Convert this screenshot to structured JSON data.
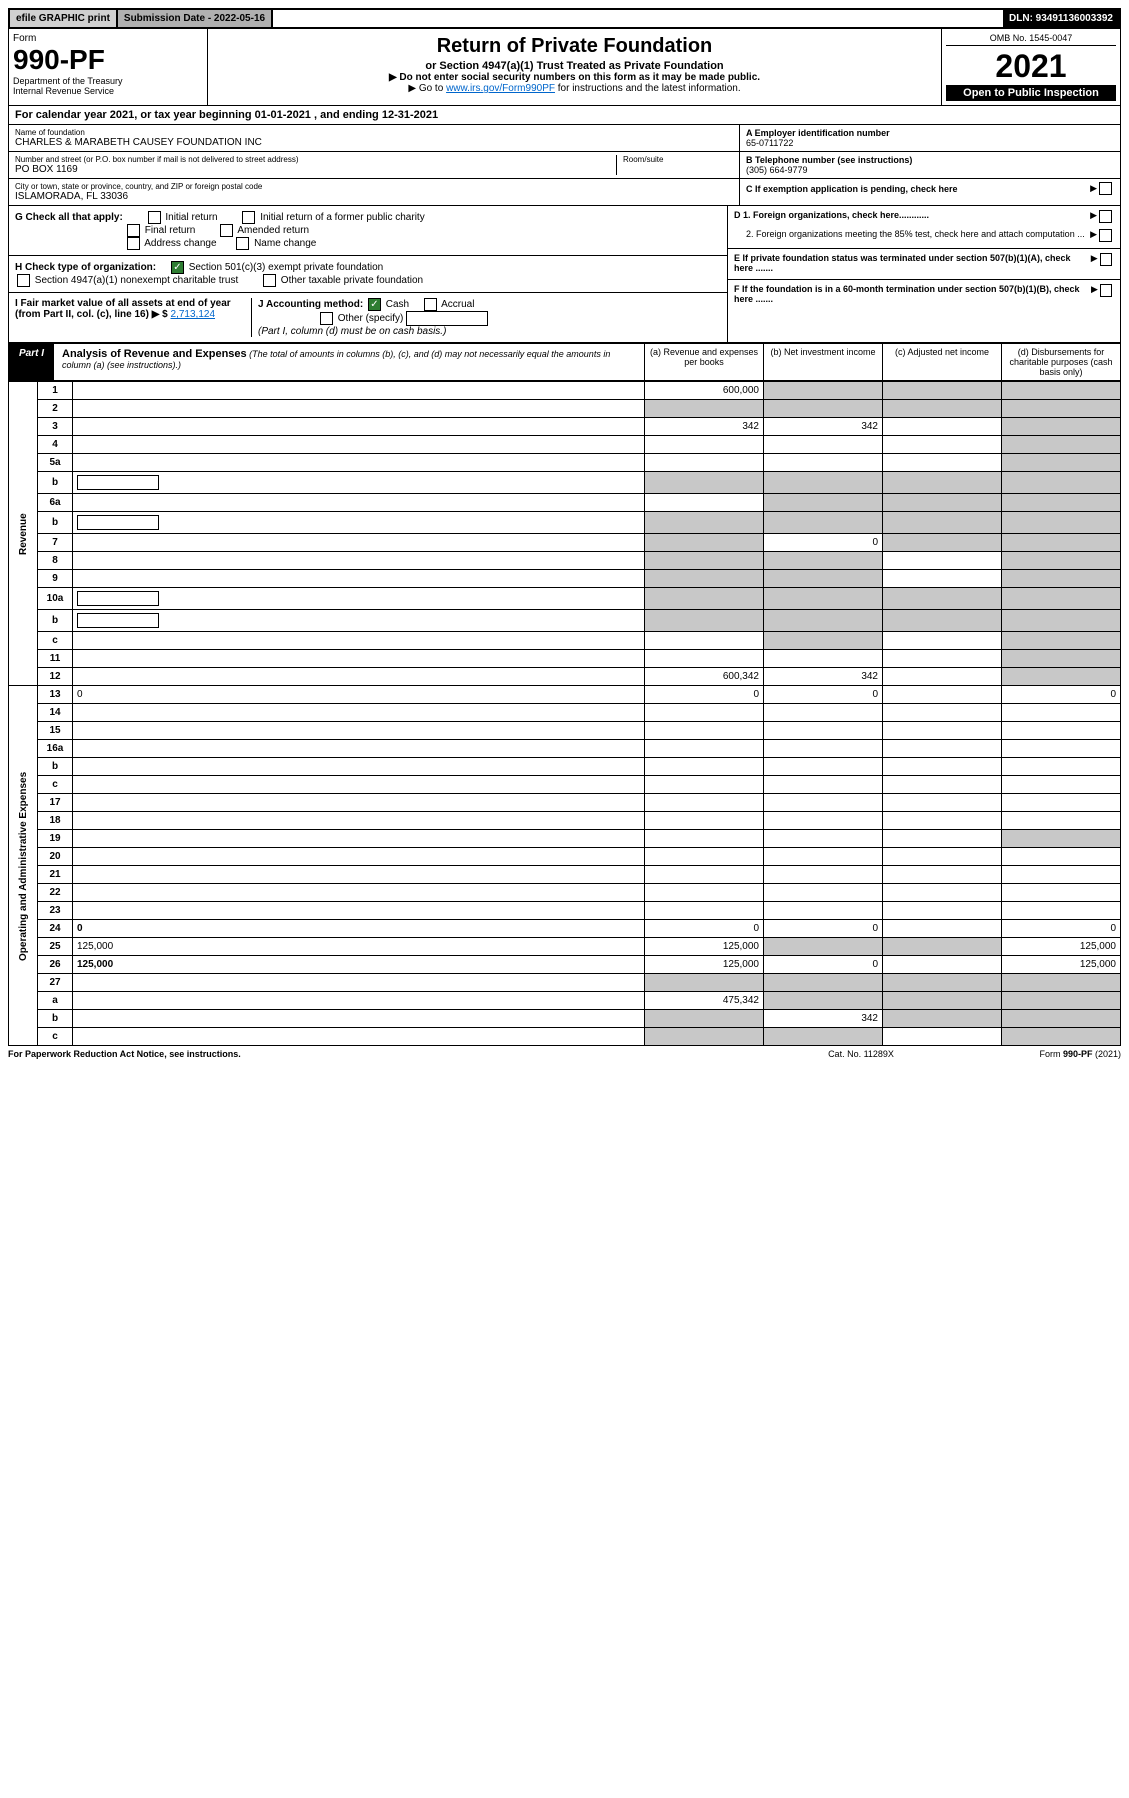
{
  "topbar": {
    "efile": "efile GRAPHIC print",
    "submission": "Submission Date - 2022-05-16",
    "dln": "DLN: 93491136003392"
  },
  "header": {
    "form_word": "Form",
    "form_no": "990-PF",
    "dept": "Department of the Treasury",
    "irs": "Internal Revenue Service",
    "title": "Return of Private Foundation",
    "subtitle": "or Section 4947(a)(1) Trust Treated as Private Foundation",
    "note1": "▶ Do not enter social security numbers on this form as it may be made public.",
    "note2_pre": "▶ Go to ",
    "note2_link": "www.irs.gov/Form990PF",
    "note2_post": " for instructions and the latest information.",
    "omb": "OMB No. 1545-0047",
    "year": "2021",
    "open": "Open to Public Inspection"
  },
  "calendar": {
    "text_pre": "For calendar year 2021, or tax year beginning ",
    "begin": "01-01-2021",
    "mid": " , and ending ",
    "end": "12-31-2021"
  },
  "entity": {
    "name_label": "Name of foundation",
    "name": "CHARLES & MARABETH CAUSEY FOUNDATION INC",
    "addr_label": "Number and street (or P.O. box number if mail is not delivered to street address)",
    "addr": "PO BOX 1169",
    "room_label": "Room/suite",
    "city_label": "City or town, state or province, country, and ZIP or foreign postal code",
    "city": "ISLAMORADA, FL  33036",
    "a_label": "A Employer identification number",
    "a_value": "65-0711722",
    "b_label": "B Telephone number (see instructions)",
    "b_value": "(305) 664-9779",
    "c_label": "C If exemption application is pending, check here"
  },
  "checks": {
    "g_label": "G Check all that apply:",
    "g_items": [
      "Initial return",
      "Initial return of a former public charity",
      "Final return",
      "Amended return",
      "Address change",
      "Name change"
    ],
    "h_label": "H Check type of organization:",
    "h1": "Section 501(c)(3) exempt private foundation",
    "h2": "Section 4947(a)(1) nonexempt charitable trust",
    "h3": "Other taxable private foundation",
    "i_label": "I Fair market value of all assets at end of year (from Part II, col. (c), line 16) ▶ $",
    "i_value": "2,713,124",
    "j_label": "J Accounting method:",
    "j_cash": "Cash",
    "j_accrual": "Accrual",
    "j_other": "Other (specify)",
    "j_note": "(Part I, column (d) must be on cash basis.)",
    "d1": "D 1. Foreign organizations, check here............",
    "d2": "2. Foreign organizations meeting the 85% test, check here and attach computation ...",
    "e": "E  If private foundation status was terminated under section 507(b)(1)(A), check here .......",
    "f": "F  If the foundation is in a 60-month termination under section 507(b)(1)(B), check here ......."
  },
  "part1": {
    "label": "Part I",
    "title": "Analysis of Revenue and Expenses",
    "note": " (The total of amounts in columns (b), (c), and (d) may not necessarily equal the amounts in column (a) (see instructions).)",
    "col_a": "(a) Revenue and expenses per books",
    "col_b": "(b) Net investment income",
    "col_c": "(c) Adjusted net income",
    "col_d": "(d) Disbursements for charitable purposes (cash basis only)"
  },
  "side": {
    "revenue": "Revenue",
    "expenses": "Operating and Administrative Expenses"
  },
  "rows": [
    {
      "n": "1",
      "d": "",
      "a": "600,000",
      "b": "",
      "c": "",
      "shade_b": true,
      "shade_c": true,
      "shade_d": true
    },
    {
      "n": "2",
      "d": "",
      "a": "",
      "b": "",
      "c": "",
      "shade_a": true,
      "shade_b": true,
      "shade_c": true,
      "shade_d": true,
      "bold_parts": true
    },
    {
      "n": "3",
      "d": "",
      "a": "342",
      "b": "342",
      "c": "",
      "shade_d": true
    },
    {
      "n": "4",
      "d": "",
      "a": "",
      "b": "",
      "c": "",
      "shade_d": true
    },
    {
      "n": "5a",
      "d": "",
      "a": "",
      "b": "",
      "c": "",
      "shade_d": true
    },
    {
      "n": "b",
      "d": "",
      "a": "",
      "b": "",
      "c": "",
      "shade_a": true,
      "shade_b": true,
      "shade_c": true,
      "shade_d": true,
      "has_box": true
    },
    {
      "n": "6a",
      "d": "",
      "a": "",
      "b": "",
      "c": "",
      "shade_b": true,
      "shade_c": true,
      "shade_d": true
    },
    {
      "n": "b",
      "d": "",
      "a": "",
      "b": "",
      "c": "",
      "shade_a": true,
      "shade_b": true,
      "shade_c": true,
      "shade_d": true,
      "has_box": true
    },
    {
      "n": "7",
      "d": "",
      "a": "",
      "b": "0",
      "c": "",
      "shade_a": true,
      "shade_c": true,
      "shade_d": true
    },
    {
      "n": "8",
      "d": "",
      "a": "",
      "b": "",
      "c": "",
      "shade_a": true,
      "shade_b": true,
      "shade_d": true
    },
    {
      "n": "9",
      "d": "",
      "a": "",
      "b": "",
      "c": "",
      "shade_a": true,
      "shade_b": true,
      "shade_d": true
    },
    {
      "n": "10a",
      "d": "",
      "a": "",
      "b": "",
      "c": "",
      "shade_a": true,
      "shade_b": true,
      "shade_c": true,
      "shade_d": true,
      "has_box": true
    },
    {
      "n": "b",
      "d": "",
      "a": "",
      "b": "",
      "c": "",
      "shade_a": true,
      "shade_b": true,
      "shade_c": true,
      "shade_d": true,
      "has_box": true
    },
    {
      "n": "c",
      "d": "",
      "a": "",
      "b": "",
      "c": "",
      "shade_b": true,
      "shade_d": true
    },
    {
      "n": "11",
      "d": "",
      "a": "",
      "b": "",
      "c": "",
      "shade_d": true
    },
    {
      "n": "12",
      "d": "",
      "a": "600,342",
      "b": "342",
      "c": "",
      "bold": true,
      "shade_d": true
    },
    {
      "n": "13",
      "d": "0",
      "a": "0",
      "b": "0",
      "c": ""
    },
    {
      "n": "14",
      "d": "",
      "a": "",
      "b": "",
      "c": ""
    },
    {
      "n": "15",
      "d": "",
      "a": "",
      "b": "",
      "c": ""
    },
    {
      "n": "16a",
      "d": "",
      "a": "",
      "b": "",
      "c": ""
    },
    {
      "n": "b",
      "d": "",
      "a": "",
      "b": "",
      "c": ""
    },
    {
      "n": "c",
      "d": "",
      "a": "",
      "b": "",
      "c": ""
    },
    {
      "n": "17",
      "d": "",
      "a": "",
      "b": "",
      "c": ""
    },
    {
      "n": "18",
      "d": "",
      "a": "",
      "b": "",
      "c": ""
    },
    {
      "n": "19",
      "d": "",
      "a": "",
      "b": "",
      "c": "",
      "shade_d": true
    },
    {
      "n": "20",
      "d": "",
      "a": "",
      "b": "",
      "c": ""
    },
    {
      "n": "21",
      "d": "",
      "a": "",
      "b": "",
      "c": ""
    },
    {
      "n": "22",
      "d": "",
      "a": "",
      "b": "",
      "c": ""
    },
    {
      "n": "23",
      "d": "",
      "a": "",
      "b": "",
      "c": ""
    },
    {
      "n": "24",
      "d": "0",
      "a": "0",
      "b": "0",
      "c": "",
      "bold": true
    },
    {
      "n": "25",
      "d": "125,000",
      "a": "125,000",
      "b": "",
      "c": "",
      "shade_b": true,
      "shade_c": true
    },
    {
      "n": "26",
      "d": "125,000",
      "a": "125,000",
      "b": "0",
      "c": "",
      "bold": true
    },
    {
      "n": "27",
      "d": "",
      "a": "",
      "b": "",
      "c": "",
      "shade_a": true,
      "shade_b": true,
      "shade_c": true,
      "shade_d": true
    },
    {
      "n": "a",
      "d": "",
      "a": "475,342",
      "b": "",
      "c": "",
      "bold": true,
      "shade_b": true,
      "shade_c": true,
      "shade_d": true
    },
    {
      "n": "b",
      "d": "",
      "a": "",
      "b": "342",
      "c": "",
      "bold": true,
      "shade_a": true,
      "shade_c": true,
      "shade_d": true
    },
    {
      "n": "c",
      "d": "",
      "a": "",
      "b": "",
      "c": "",
      "bold": true,
      "shade_a": true,
      "shade_b": true,
      "shade_d": true
    }
  ],
  "footer": {
    "left": "For Paperwork Reduction Act Notice, see instructions.",
    "mid": "Cat. No. 11289X",
    "right": "Form 990-PF (2021)"
  },
  "colors": {
    "shade": "#c8c8c8",
    "link": "#0066cc",
    "check_green": "#2e7d32"
  }
}
